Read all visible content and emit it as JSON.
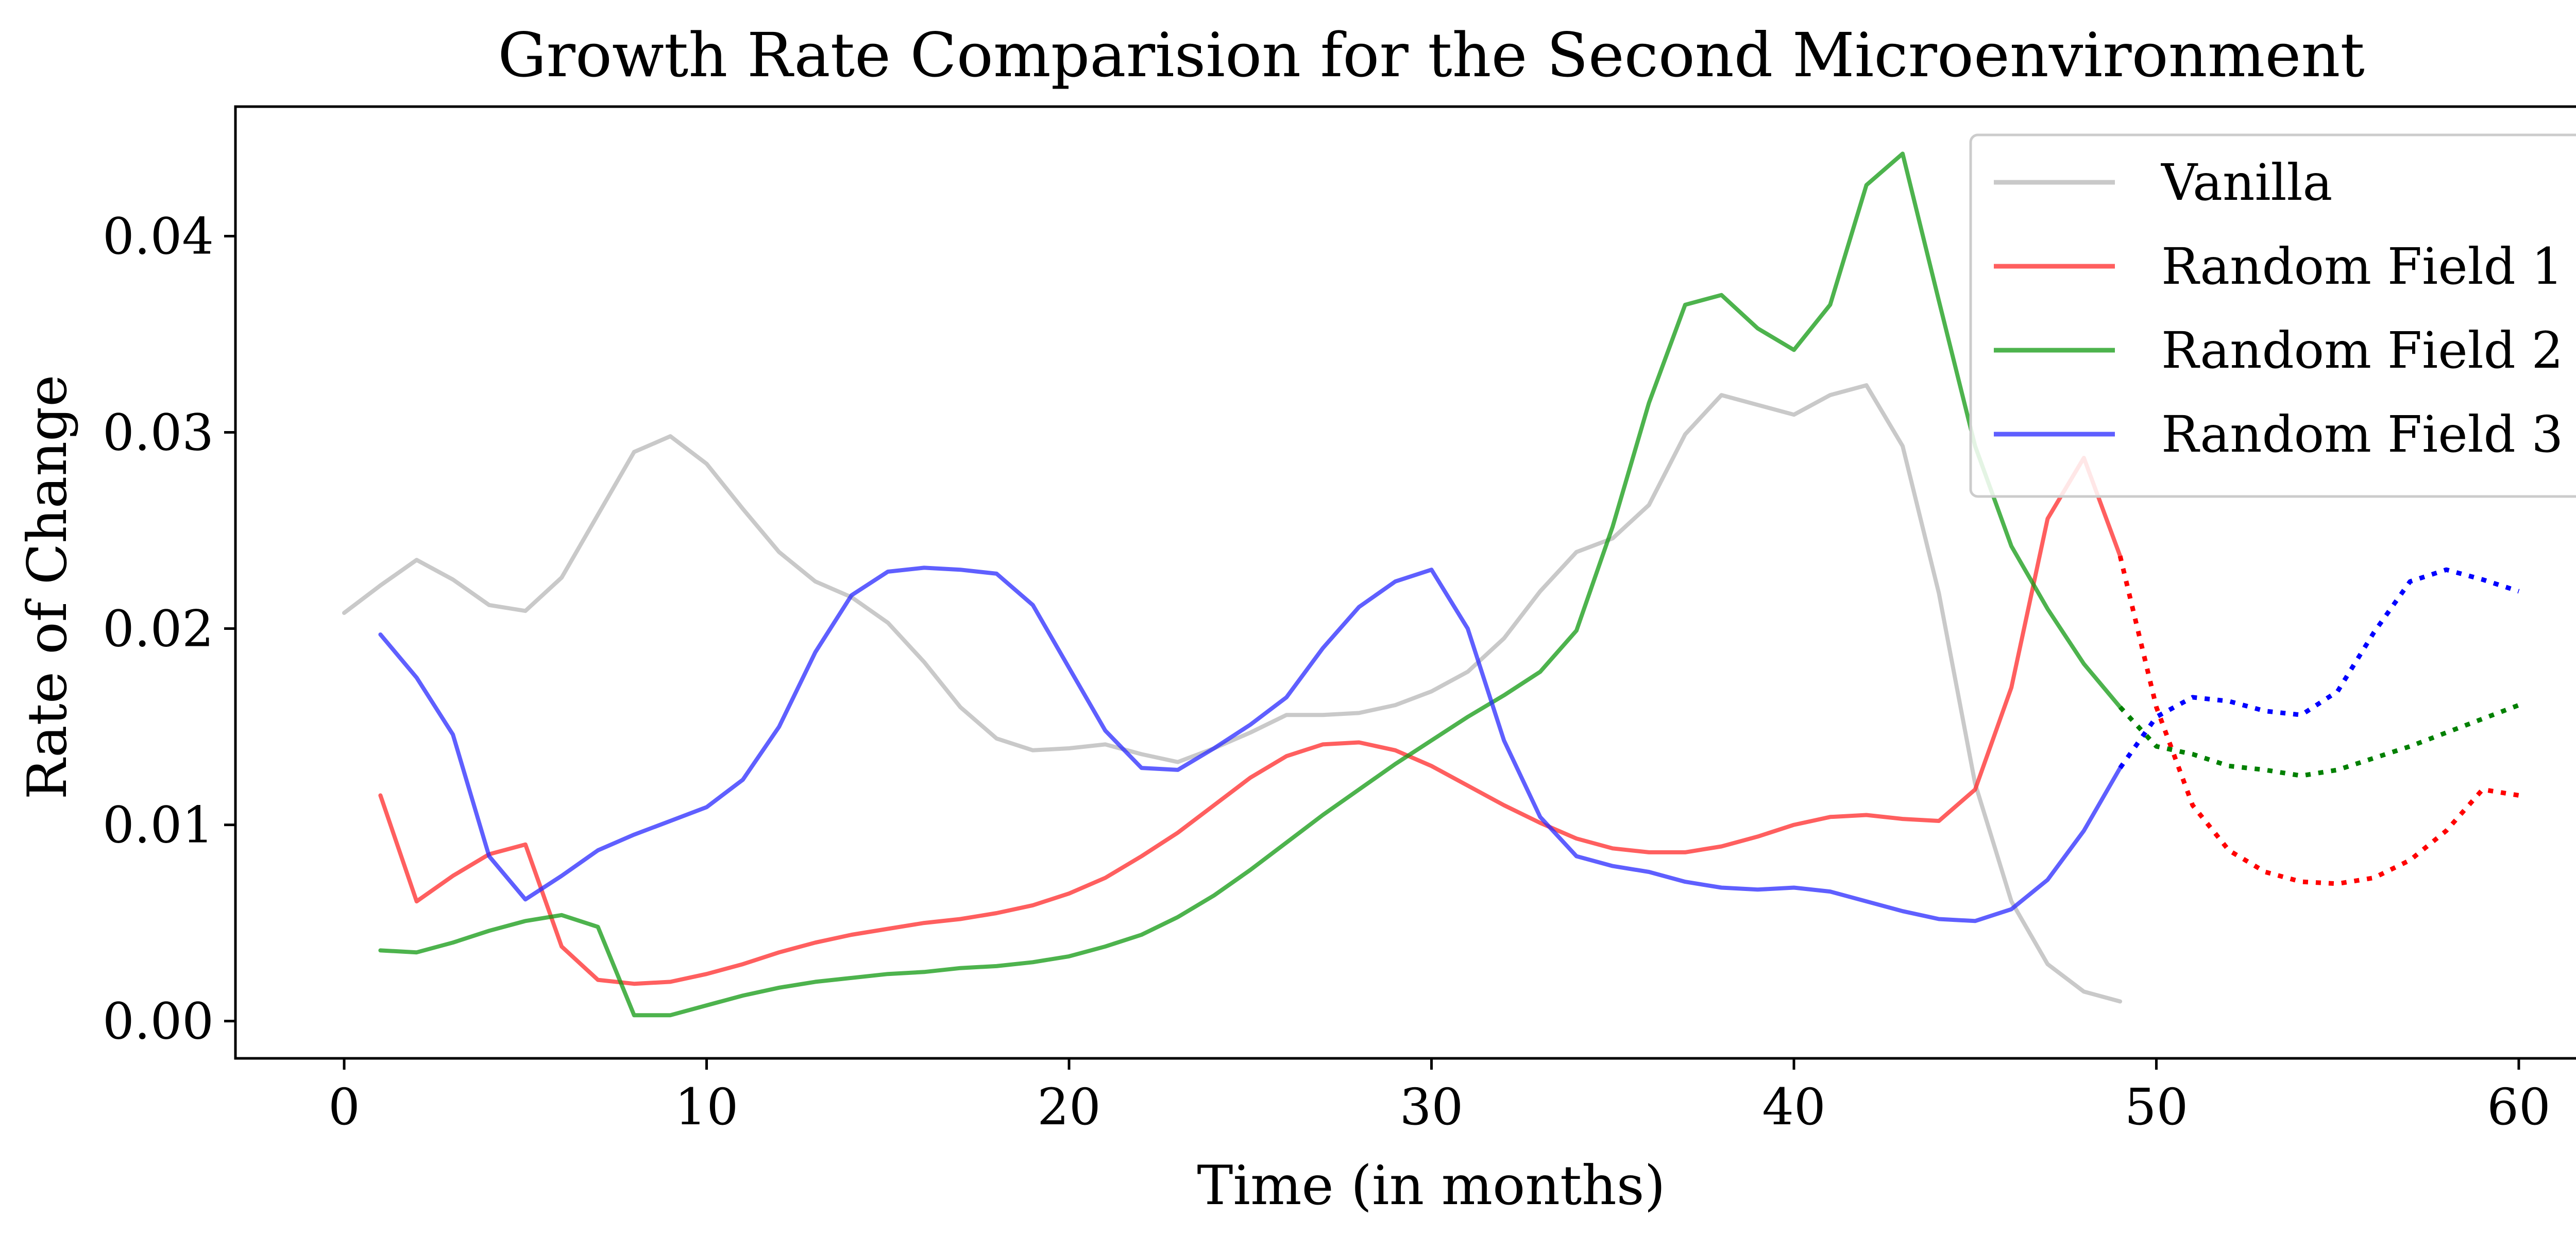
{
  "chart_data": {
    "type": "line",
    "title": "Growth Rate Comparision for the Second Microenvironment",
    "xlabel": "Time (in months)",
    "ylabel": "Rate of Change",
    "xlim": [
      -3,
      63
    ],
    "ylim": [
      -0.0019,
      0.0466
    ],
    "xticks": [
      0,
      10,
      20,
      30,
      40,
      50,
      60
    ],
    "xtick_labels": [
      "0",
      "10",
      "20",
      "30",
      "40",
      "50",
      "60"
    ],
    "yticks": [
      0.0,
      0.01,
      0.02,
      0.03,
      0.04
    ],
    "ytick_labels": [
      "0.00",
      "0.01",
      "0.02",
      "0.03",
      "0.04"
    ],
    "grid": false,
    "legend_position": "top-right",
    "series": [
      {
        "name": "Vanilla",
        "color": "#bfbfbf",
        "style": "solid",
        "x": [
          0,
          1,
          2,
          3,
          4,
          5,
          6,
          7,
          8,
          9,
          10,
          11,
          12,
          13,
          14,
          15,
          16,
          17,
          18,
          19,
          20,
          21,
          22,
          23,
          24,
          25,
          26,
          27,
          28,
          29,
          30,
          31,
          32,
          33,
          34,
          35,
          36,
          37,
          38,
          39,
          40,
          41,
          42,
          43,
          44,
          45,
          46,
          47,
          48,
          49
        ],
        "y": [
          0.0208,
          0.0222,
          0.0235,
          0.0225,
          0.0212,
          0.0209,
          0.0226,
          0.0258,
          0.029,
          0.0298,
          0.0284,
          0.0261,
          0.0239,
          0.0224,
          0.0216,
          0.0203,
          0.0183,
          0.016,
          0.0144,
          0.0138,
          0.0139,
          0.0141,
          0.0136,
          0.0132,
          0.0139,
          0.0147,
          0.0156,
          0.0156,
          0.0157,
          0.0161,
          0.0168,
          0.0178,
          0.0195,
          0.0219,
          0.0239,
          0.0246,
          0.0263,
          0.0299,
          0.0319,
          0.0314,
          0.0309,
          0.0319,
          0.0324,
          0.0293,
          0.0218,
          0.0121,
          0.0061,
          0.0029,
          0.0015,
          0.001
        ]
      },
      {
        "name": "Random Field 1",
        "color": "#ff2a2a",
        "style": "solid",
        "x": [
          1,
          2,
          3,
          4,
          5,
          6,
          7,
          8,
          9,
          10,
          11,
          12,
          13,
          14,
          15,
          16,
          17,
          18,
          19,
          20,
          21,
          22,
          23,
          24,
          25,
          26,
          27,
          28,
          29,
          30,
          31,
          32,
          33,
          34,
          35,
          36,
          37,
          38,
          39,
          40,
          41,
          42,
          43,
          44,
          45,
          46,
          47,
          48,
          49
        ],
        "y": [
          0.0115,
          0.0061,
          0.0074,
          0.0085,
          0.009,
          0.0038,
          0.0021,
          0.0019,
          0.002,
          0.0024,
          0.0029,
          0.0035,
          0.004,
          0.0044,
          0.0047,
          0.005,
          0.0052,
          0.0055,
          0.0059,
          0.0065,
          0.0073,
          0.0084,
          0.0096,
          0.011,
          0.0124,
          0.0135,
          0.0141,
          0.0142,
          0.0138,
          0.013,
          0.012,
          0.011,
          0.0101,
          0.0093,
          0.0088,
          0.0086,
          0.0086,
          0.0089,
          0.0094,
          0.01,
          0.0104,
          0.0105,
          0.0103,
          0.0102,
          0.0118,
          0.017,
          0.0256,
          0.0287,
          0.0237
        ]
      },
      {
        "name": "Random Field 2",
        "color": "#119911",
        "style": "solid",
        "x": [
          1,
          2,
          3,
          4,
          5,
          6,
          7,
          8,
          9,
          10,
          11,
          12,
          13,
          14,
          15,
          16,
          17,
          18,
          19,
          20,
          21,
          22,
          23,
          24,
          25,
          26,
          27,
          28,
          29,
          30,
          31,
          32,
          33,
          34,
          35,
          36,
          37,
          38,
          39,
          40,
          41,
          42,
          43,
          44,
          45,
          46,
          47,
          48,
          49
        ],
        "y": [
          0.0036,
          0.0035,
          0.004,
          0.0046,
          0.0051,
          0.0054,
          0.0048,
          0.0003,
          0.0003,
          0.0008,
          0.0013,
          0.0017,
          0.002,
          0.0022,
          0.0024,
          0.0025,
          0.0027,
          0.0028,
          0.003,
          0.0033,
          0.0038,
          0.0044,
          0.0053,
          0.0064,
          0.0077,
          0.0091,
          0.0105,
          0.0118,
          0.0131,
          0.0143,
          0.0155,
          0.0166,
          0.0178,
          0.0199,
          0.0252,
          0.0315,
          0.0365,
          0.037,
          0.0353,
          0.0342,
          0.0365,
          0.0426,
          0.0442,
          0.0367,
          0.0293,
          0.0242,
          0.021,
          0.0182,
          0.016
        ]
      },
      {
        "name": "Random Field 3",
        "color": "#2a2aff",
        "style": "solid",
        "x": [
          1,
          2,
          3,
          4,
          5,
          6,
          7,
          8,
          9,
          10,
          11,
          12,
          13,
          14,
          15,
          16,
          17,
          18,
          19,
          20,
          21,
          22,
          23,
          24,
          25,
          26,
          27,
          28,
          29,
          30,
          31,
          32,
          33,
          34,
          35,
          36,
          37,
          38,
          39,
          40,
          41,
          42,
          43,
          44,
          45,
          46,
          47,
          48,
          49
        ],
        "y": [
          0.0197,
          0.0175,
          0.0146,
          0.0084,
          0.0062,
          0.0074,
          0.0087,
          0.0095,
          0.0102,
          0.0109,
          0.0123,
          0.015,
          0.0188,
          0.0217,
          0.0229,
          0.0231,
          0.023,
          0.0228,
          0.0212,
          0.018,
          0.0148,
          0.0129,
          0.0128,
          0.0139,
          0.0151,
          0.0165,
          0.019,
          0.0211,
          0.0224,
          0.023,
          0.02,
          0.0143,
          0.0104,
          0.0084,
          0.0079,
          0.0076,
          0.0071,
          0.0068,
          0.0067,
          0.0068,
          0.0066,
          0.0061,
          0.0056,
          0.0052,
          0.0051,
          0.0057,
          0.0072,
          0.0097,
          0.0129
        ]
      },
      {
        "color": "#ff0000",
        "style": "dotted",
        "x": [
          49,
          50,
          51,
          52,
          53,
          54,
          55,
          56,
          57,
          58,
          59,
          60
        ],
        "y": [
          0.0237,
          0.016,
          0.011,
          0.0087,
          0.0076,
          0.0071,
          0.007,
          0.0073,
          0.0082,
          0.0097,
          0.0118,
          0.0115
        ]
      },
      {
        "color": "#008000",
        "style": "dotted",
        "x": [
          49,
          50,
          51,
          52,
          53,
          54,
          55,
          56,
          57,
          58,
          59,
          60
        ],
        "y": [
          0.016,
          0.014,
          0.0136,
          0.013,
          0.0128,
          0.0125,
          0.0128,
          0.0134,
          0.014,
          0.0147,
          0.0154,
          0.0161
        ]
      },
      {
        "color": "#0000ff",
        "style": "dotted",
        "x": [
          49,
          50,
          51,
          52,
          53,
          54,
          55,
          56,
          57,
          58,
          59,
          60
        ],
        "y": [
          0.0129,
          0.0155,
          0.0165,
          0.0163,
          0.0158,
          0.0156,
          0.0168,
          0.0198,
          0.0224,
          0.023,
          0.0225,
          0.0219
        ]
      }
    ]
  }
}
